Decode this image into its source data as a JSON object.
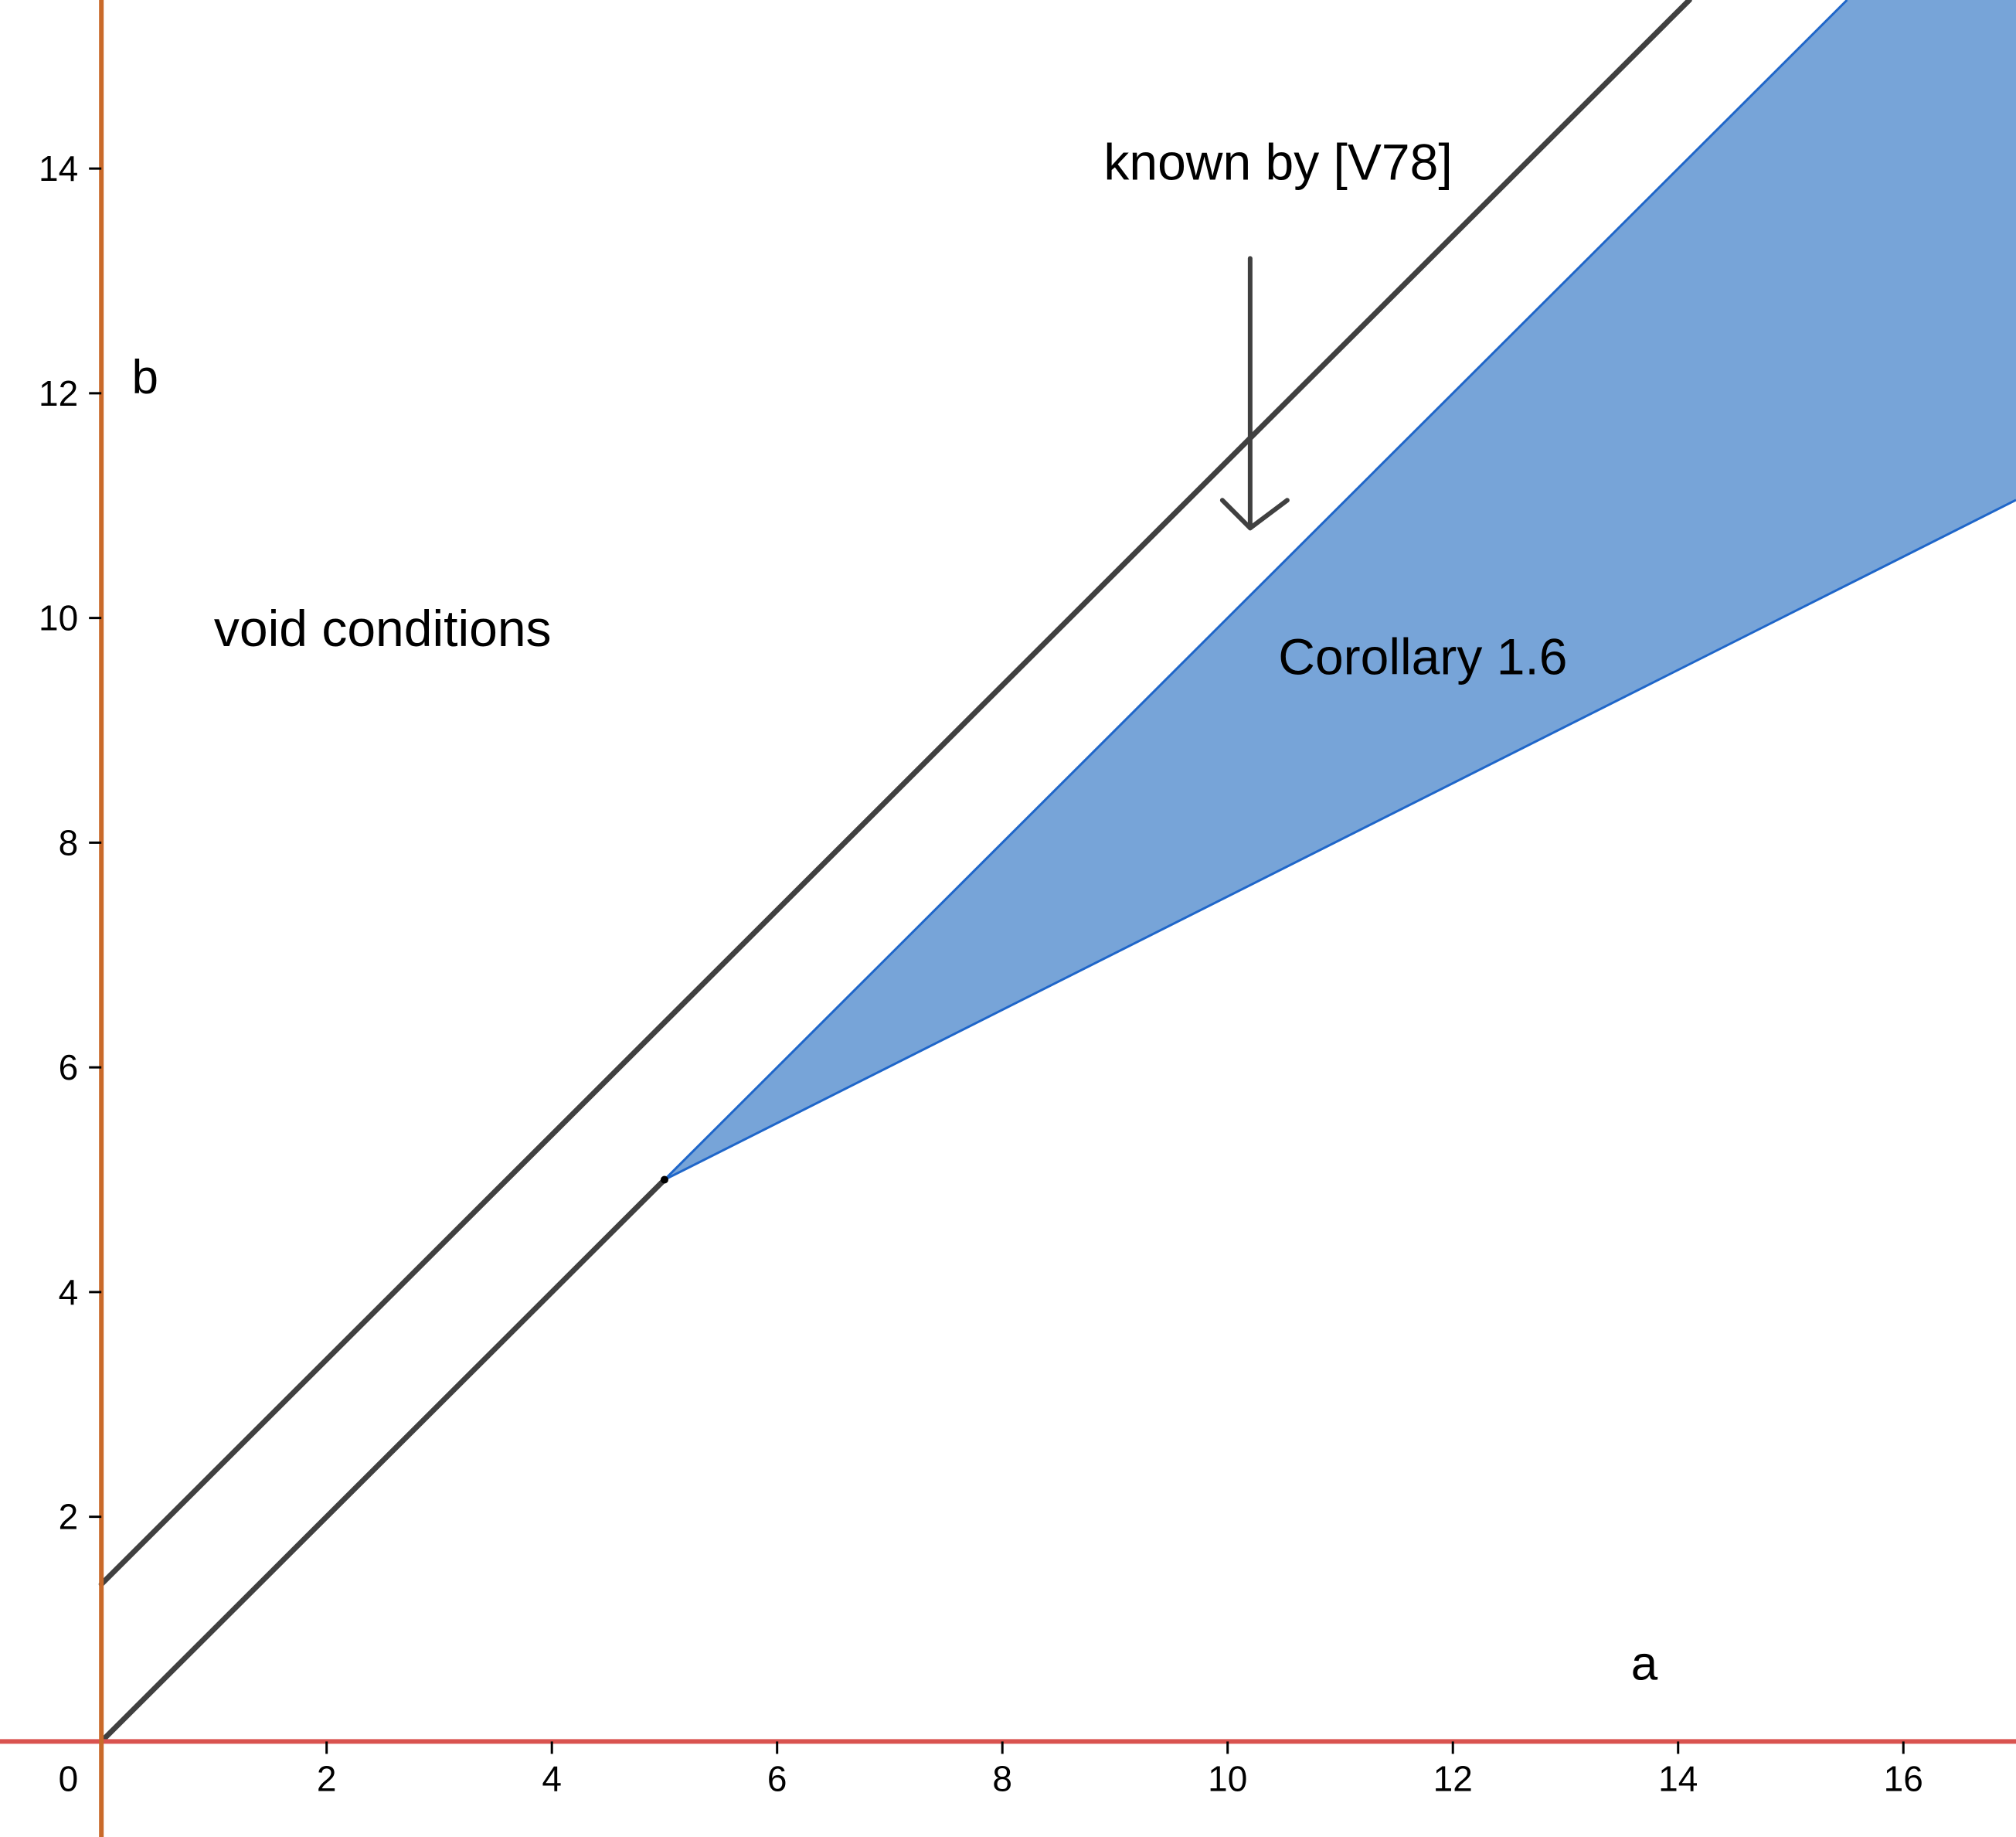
{
  "chart_data": {
    "type": "area",
    "xlabel": "a",
    "ylabel": "b",
    "xlim": [
      -0.9,
      17
    ],
    "ylim": [
      -0.85,
      15.5
    ],
    "origin_label": "0",
    "x_ticks": [
      2,
      4,
      6,
      8,
      10,
      12,
      14,
      16
    ],
    "y_ticks": [
      2,
      4,
      6,
      8,
      10,
      12,
      14
    ],
    "lines": [
      {
        "x": [
          0,
          14.1
        ],
        "y": [
          1.4,
          15.5
        ]
      },
      {
        "x": [
          0,
          5
        ],
        "y": [
          0,
          5
        ]
      }
    ],
    "region": {
      "vertex": [
        5,
        5
      ],
      "upper": {
        "x": [
          5,
          15.5
        ],
        "y": [
          5,
          15.5
        ]
      },
      "lower": {
        "x": [
          5,
          17
        ],
        "y": [
          5,
          11.05
        ]
      }
    },
    "arrow": {
      "from": [
        10.2,
        13.2
      ],
      "to": [
        10.2,
        10.8
      ]
    },
    "annotations": [
      {
        "text": "known by [V78]",
        "x": 8.9,
        "y": 13.9
      },
      {
        "text": "void conditions",
        "x": 1.0,
        "y": 9.75
      },
      {
        "text": "Corollary 1.6",
        "x": 10.45,
        "y": 9.5
      }
    ],
    "grid": false,
    "colors": {
      "x_axis": "#d9534f",
      "y_axis": "#c96a2a",
      "lines": "#404040",
      "region_fill": "#77a4d8",
      "region_edge": "#1f66c9"
    }
  }
}
